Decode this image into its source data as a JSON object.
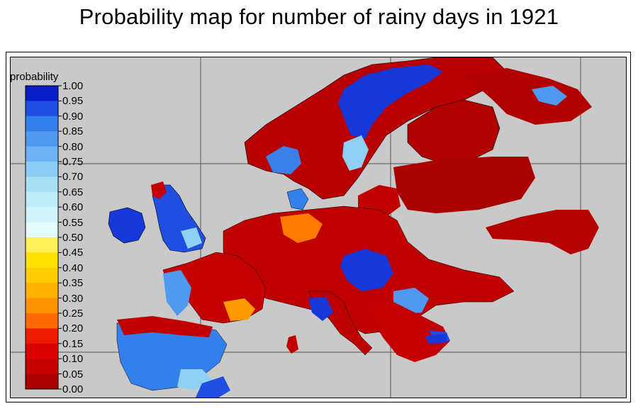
{
  "title": "Probability map for number of rainy days in 1921",
  "legend": {
    "title": "probability",
    "ticks": [
      "1.00",
      "0.95",
      "0.90",
      "0.85",
      "0.80",
      "0.75",
      "0.70",
      "0.65",
      "0.60",
      "0.55",
      "0.50",
      "0.45",
      "0.40",
      "0.35",
      "0.30",
      "0.25",
      "0.20",
      "0.15",
      "0.10",
      "0.05",
      "0.00"
    ],
    "colors": [
      "#0a1cc8",
      "#1f4ee0",
      "#3380ec",
      "#4f99f0",
      "#6db2f2",
      "#8ccbf4",
      "#a8def6",
      "#bdecf8",
      "#d1f5fb",
      "#e6fbfc",
      "#fff05a",
      "#ffe000",
      "#ffcc00",
      "#ffb000",
      "#ff9200",
      "#ff6a00",
      "#ee1a00",
      "#dd0000",
      "#c40000",
      "#aa0000"
    ]
  },
  "colors": {
    "background": "#c9c9c9",
    "land_outline": "#000000",
    "high": "#0a1cc8",
    "low": "#a30000"
  }
}
